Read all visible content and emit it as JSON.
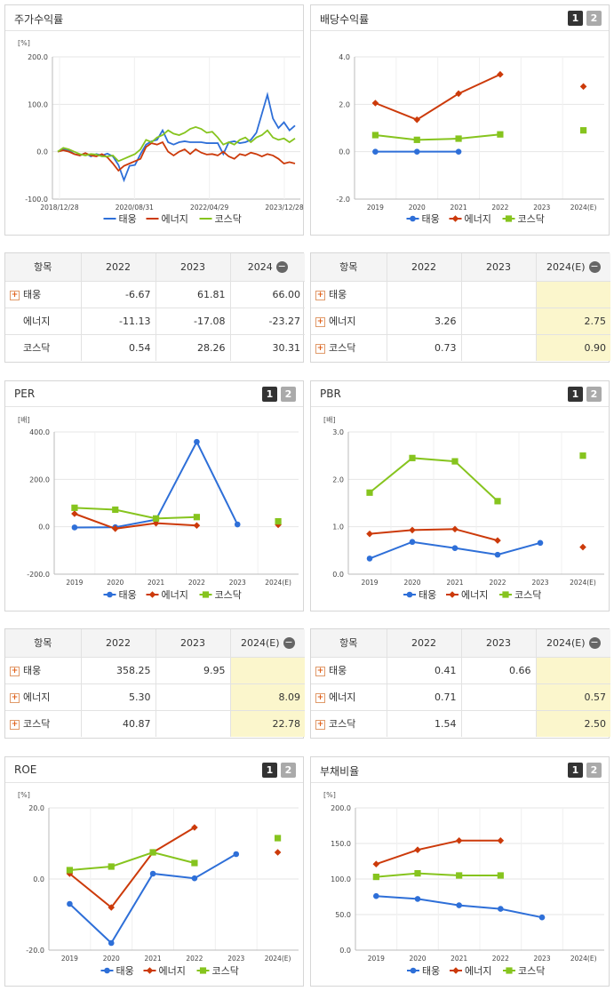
{
  "legend": {
    "taeung": "태웅",
    "energy": "에너지",
    "kosdaq": "코스닥"
  },
  "colors": {
    "taeung": "#2e6fd8",
    "energy": "#cc3a0a",
    "kosdaq": "#86c41e",
    "estimate_bg": "#fbf6cc"
  },
  "icons": {
    "pager_1": "1",
    "pager_2": "2",
    "expand": "+",
    "collapse": "−"
  },
  "stock_return": {
    "title": "주가수익률",
    "unit": "[%]",
    "chart_data": {
      "type": "line",
      "ylim": [
        -100,
        200
      ],
      "yticks": [
        "200.0",
        "100.0",
        "0.0",
        "-100.0"
      ],
      "xticks": [
        "2018/12/28",
        "2020/08/31",
        "2022/04/29",
        "2023/12/28"
      ],
      "series": [
        {
          "name": "태웅",
          "values": [
            0,
            5,
            3,
            -5,
            -8,
            -3,
            -10,
            -5,
            -8,
            -4,
            -10,
            -28,
            -60,
            -30,
            -28,
            -5,
            15,
            22,
            25,
            45,
            20,
            15,
            20,
            22,
            20,
            20,
            20,
            18,
            18,
            18,
            -5,
            20,
            22,
            18,
            20,
            25,
            40,
            80,
            120,
            70,
            50,
            62,
            45,
            55
          ]
        },
        {
          "name": "에너지",
          "values": [
            0,
            3,
            0,
            -5,
            -8,
            -3,
            -8,
            -10,
            -5,
            -12,
            -25,
            -40,
            -30,
            -25,
            -20,
            -15,
            10,
            18,
            15,
            20,
            0,
            -8,
            0,
            5,
            -5,
            5,
            -2,
            -6,
            -5,
            -8,
            0,
            -10,
            -15,
            -5,
            -8,
            -2,
            -5,
            -10,
            -5,
            -8,
            -15,
            -25,
            -22,
            -25
          ]
        },
        {
          "name": "코스닥",
          "values": [
            0,
            8,
            5,
            0,
            -5,
            -8,
            -5,
            -6,
            -10,
            -10,
            -8,
            -20,
            -15,
            -10,
            -5,
            5,
            25,
            20,
            30,
            35,
            45,
            38,
            35,
            40,
            48,
            52,
            48,
            40,
            42,
            30,
            15,
            20,
            15,
            25,
            30,
            20,
            30,
            35,
            45,
            30,
            25,
            28,
            20,
            28
          ]
        }
      ]
    }
  },
  "dividend_yield": {
    "title": "배당수익률",
    "unit": "",
    "chart_data": {
      "type": "line",
      "categories": [
        "2019",
        "2020",
        "2021",
        "2022",
        "2023",
        "2024(E)"
      ],
      "ylim": [
        -2,
        4
      ],
      "yticks": [
        "4.0",
        "2.0",
        "0.0",
        "-2.0"
      ],
      "series": [
        {
          "name": "태웅",
          "values": [
            0.0,
            0.0,
            0.0,
            null,
            null,
            null
          ]
        },
        {
          "name": "에너지",
          "values": [
            2.05,
            1.35,
            2.45,
            3.26,
            null,
            2.75
          ]
        },
        {
          "name": "코스닥",
          "values": [
            0.7,
            0.5,
            0.55,
            0.73,
            null,
            0.9
          ]
        }
      ]
    }
  },
  "stock_return_table": {
    "header": [
      "항목",
      "2022",
      "2023",
      "2024"
    ],
    "rows": [
      {
        "label": "태웅",
        "expandable": true,
        "values": [
          "-6.67",
          "61.81",
          "66.00"
        ]
      },
      {
        "label": "에너지",
        "expandable": false,
        "values": [
          "-11.13",
          "-17.08",
          "-23.27"
        ]
      },
      {
        "label": "코스닥",
        "expandable": false,
        "values": [
          "0.54",
          "28.26",
          "30.31"
        ]
      }
    ]
  },
  "dividend_table": {
    "header": [
      "항목",
      "2022",
      "2023",
      "2024(E)"
    ],
    "rows": [
      {
        "label": "태웅",
        "expandable": true,
        "values": [
          "",
          "",
          ""
        ]
      },
      {
        "label": "에너지",
        "expandable": true,
        "values": [
          "3.26",
          "",
          "2.75"
        ]
      },
      {
        "label": "코스닥",
        "expandable": true,
        "values": [
          "0.73",
          "",
          "0.90"
        ]
      }
    ]
  },
  "per": {
    "title": "PER",
    "unit": "[배]",
    "chart_data": {
      "type": "line",
      "categories": [
        "2019",
        "2020",
        "2021",
        "2022",
        "2023",
        "2024(E)"
      ],
      "ylim": [
        -200,
        400
      ],
      "yticks": [
        "400.0",
        "200.0",
        "0.0",
        "-200.0"
      ],
      "series": [
        {
          "name": "태웅",
          "values": [
            -3,
            -2,
            30,
            358.25,
            9.95,
            null
          ]
        },
        {
          "name": "에너지",
          "values": [
            55,
            -8,
            15,
            5.3,
            null,
            8.09
          ]
        },
        {
          "name": "코스닥",
          "values": [
            80,
            72,
            35,
            40.87,
            null,
            22.78
          ]
        }
      ]
    }
  },
  "pbr": {
    "title": "PBR",
    "unit": "[배]",
    "chart_data": {
      "type": "line",
      "categories": [
        "2019",
        "2020",
        "2021",
        "2022",
        "2023",
        "2024(E)"
      ],
      "ylim": [
        0,
        3
      ],
      "yticks": [
        "3.0",
        "2.0",
        "1.0",
        "0.0"
      ],
      "series": [
        {
          "name": "태웅",
          "values": [
            0.33,
            0.68,
            0.55,
            0.41,
            0.66,
            null
          ]
        },
        {
          "name": "에너지",
          "values": [
            0.85,
            0.93,
            0.95,
            0.71,
            null,
            0.57
          ]
        },
        {
          "name": "코스닥",
          "values": [
            1.72,
            2.45,
            2.38,
            1.54,
            null,
            2.5
          ]
        }
      ]
    }
  },
  "per_table": {
    "header": [
      "항목",
      "2022",
      "2023",
      "2024(E)"
    ],
    "rows": [
      {
        "label": "태웅",
        "expandable": true,
        "values": [
          "358.25",
          "9.95",
          ""
        ]
      },
      {
        "label": "에너지",
        "expandable": true,
        "values": [
          "5.30",
          "",
          "8.09"
        ]
      },
      {
        "label": "코스닥",
        "expandable": true,
        "values": [
          "40.87",
          "",
          "22.78"
        ]
      }
    ]
  },
  "pbr_table": {
    "header": [
      "항목",
      "2022",
      "2023",
      "2024(E)"
    ],
    "rows": [
      {
        "label": "태웅",
        "expandable": true,
        "values": [
          "0.41",
          "0.66",
          ""
        ]
      },
      {
        "label": "에너지",
        "expandable": true,
        "values": [
          "0.71",
          "",
          "0.57"
        ]
      },
      {
        "label": "코스닥",
        "expandable": true,
        "values": [
          "1.54",
          "",
          "2.50"
        ]
      }
    ]
  },
  "roe": {
    "title": "ROE",
    "unit": "[%]",
    "chart_data": {
      "type": "line",
      "categories": [
        "2019",
        "2020",
        "2021",
        "2022",
        "2023",
        "2024(E)"
      ],
      "ylim": [
        -20,
        20
      ],
      "yticks": [
        "20.0",
        "0.0",
        "-20.0"
      ],
      "series": [
        {
          "name": "태웅",
          "values": [
            -7,
            -18,
            1.5,
            0.2,
            7,
            null
          ]
        },
        {
          "name": "에너지",
          "values": [
            1.5,
            -8,
            7.5,
            14.5,
            null,
            7.5
          ]
        },
        {
          "name": "코스닥",
          "values": [
            2.5,
            3.5,
            7.5,
            4.5,
            null,
            11.5
          ]
        }
      ]
    }
  },
  "debt_ratio": {
    "title": "부채비율",
    "unit": "[%]",
    "chart_data": {
      "type": "line",
      "categories": [
        "2019",
        "2020",
        "2021",
        "2022",
        "2023",
        "2024(E)"
      ],
      "ylim": [
        0,
        200
      ],
      "yticks": [
        "200.0",
        "150.0",
        "100.0",
        "50.0",
        "0.0"
      ],
      "series": [
        {
          "name": "태웅",
          "values": [
            76,
            72,
            63,
            58,
            46,
            null
          ]
        },
        {
          "name": "에너지",
          "values": [
            121,
            141,
            154,
            154,
            null,
            null
          ]
        },
        {
          "name": "코스닥",
          "values": [
            103,
            108,
            105,
            105,
            null,
            null
          ]
        }
      ]
    }
  }
}
